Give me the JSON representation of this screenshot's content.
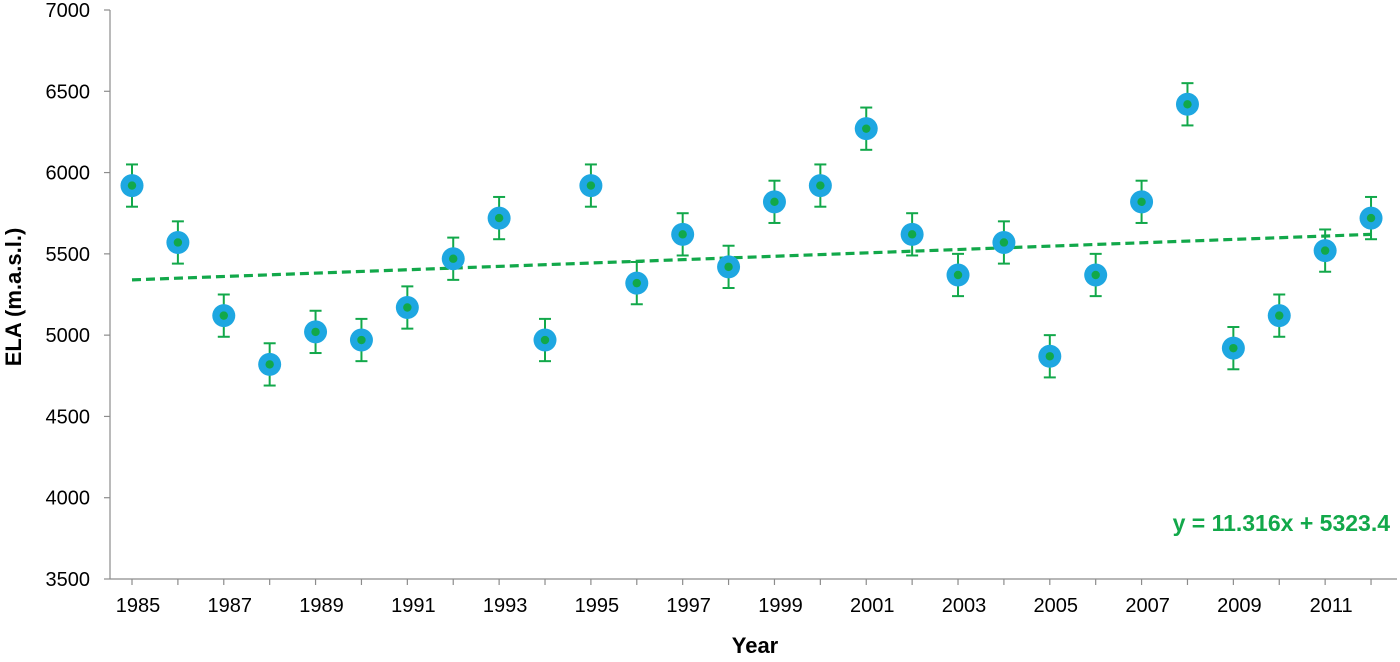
{
  "chart_data": {
    "type": "scatter",
    "title": "",
    "xlabel": "Year",
    "ylabel": "ELA (m.a.s.l.)",
    "xlim": [
      1985,
      2012
    ],
    "ylim": [
      3500,
      7000
    ],
    "y_ticks": [
      "3500",
      "4000",
      "4500",
      "5000",
      "5500",
      "6000",
      "6500",
      "7000"
    ],
    "x_ticks": [
      "1985",
      "1987",
      "1989",
      "1991",
      "1993",
      "1995",
      "1997",
      "1999",
      "2001",
      "2003",
      "2005",
      "2007",
      "2009",
      "2011"
    ],
    "grid": false,
    "x": [
      1985,
      1986,
      1987,
      1988,
      1989,
      1990,
      1991,
      1992,
      1993,
      1994,
      1995,
      1996,
      1997,
      1998,
      1999,
      2000,
      2001,
      2002,
      2003,
      2004,
      2005,
      2006,
      2007,
      2008,
      2009,
      2010,
      2011,
      2012
    ],
    "y": [
      5920,
      5570,
      5120,
      4820,
      5020,
      4970,
      5170,
      5470,
      5720,
      4970,
      5920,
      5320,
      5620,
      5420,
      5820,
      5920,
      6270,
      5620,
      5370,
      5570,
      4870,
      5370,
      5820,
      6420,
      4920,
      5120,
      5520,
      5720
    ],
    "error": 130,
    "trendline": {
      "slope": 11.316,
      "intercept": 5323.4,
      "start": [
        1985,
        5340
      ],
      "end": [
        2012,
        5620
      ],
      "equation": "y = 11.316x + 5323.4"
    },
    "colors": {
      "marker_outer": "#1ea7e1",
      "marker_inner": "#12a84a",
      "error_bar": "#12a84a",
      "trendline": "#12a84a",
      "axis": "#8c8c8c"
    }
  }
}
